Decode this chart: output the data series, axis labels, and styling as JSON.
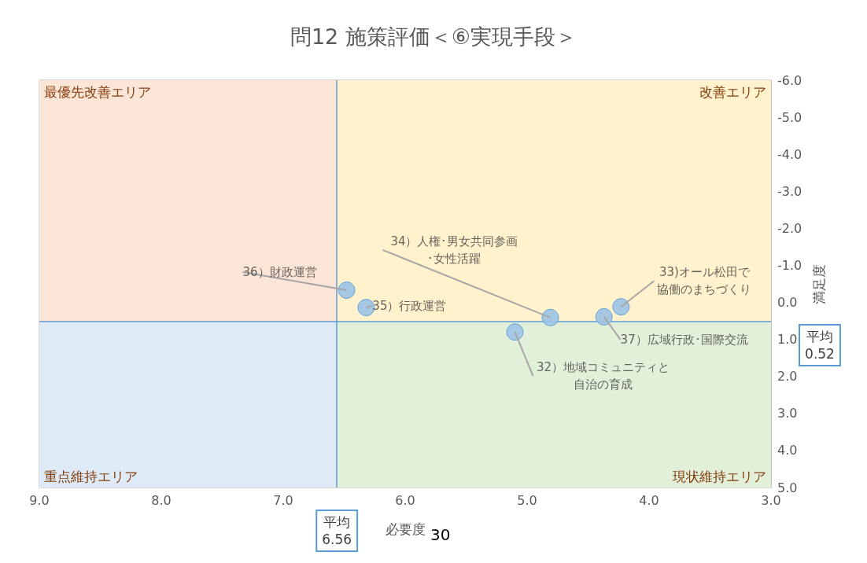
{
  "chart_data": {
    "type": "scatter",
    "title": "問12 施策評価＜⑥実現手段＞",
    "xlabel": "必要度",
    "ylabel": "満足度",
    "x": [
      5.1,
      4.23,
      4.81,
      6.32,
      6.48,
      4.37
    ],
    "series": [
      {
        "color": "#9dc3e6",
        "values": [
          0.8,
          0.12,
          0.41,
          0.14,
          -0.33,
          0.39
        ]
      }
    ],
    "marker": "circle",
    "xlim": [
      9,
      3
    ],
    "xticks": [
      {
        "value": 9,
        "label": "9.0"
      },
      {
        "value": 8,
        "label": "8.0"
      },
      {
        "value": 7,
        "label": "7.0"
      },
      {
        "value": 6,
        "label": "6.0"
      },
      {
        "value": 5,
        "label": "5.0"
      },
      {
        "value": 4,
        "label": "4.0"
      },
      {
        "value": 3,
        "label": "3.0"
      }
    ],
    "ylim": [
      5,
      -6
    ],
    "yticks": [
      {
        "value": -6,
        "label": "-6.0"
      },
      {
        "value": -5,
        "label": "-5.0"
      },
      {
        "value": -4,
        "label": "-4.0"
      },
      {
        "value": -3,
        "label": "-3.0"
      },
      {
        "value": -2,
        "label": "-2.0"
      },
      {
        "value": -1,
        "label": "-1.0"
      },
      {
        "value": 0,
        "label": "0.0"
      },
      {
        "value": 1,
        "label": "1.0"
      },
      {
        "value": 2,
        "label": "2.0"
      },
      {
        "value": 3,
        "label": "3.0"
      },
      {
        "value": 4,
        "label": "4.0"
      },
      {
        "value": 5,
        "label": "5.0"
      }
    ],
    "grid": true,
    "ref_lines": [
      {
        "axis": "x",
        "value": 6.56,
        "label": "平均\n6.56",
        "color": "#5b9bd5"
      },
      {
        "axis": "y",
        "value": 0.52,
        "label": "平均\n0.52",
        "color": "#5b9bd5"
      }
    ],
    "bands": [
      {
        "axis": "x",
        "from": 9,
        "to": 6.56,
        "label": "最優先改善エリア",
        "color": "#fbe5d6"
      },
      {
        "axis": "x",
        "from": 6.56,
        "to": 3,
        "label": "改善エリア",
        "color": "#fff2cc"
      },
      {
        "axis": "x",
        "from": 9,
        "to": 6.56,
        "label": "重点維持エリア",
        "color": "#deebf7"
      },
      {
        "axis": "x",
        "from": 6.56,
        "to": 3,
        "label": "現状維持エリア",
        "color": "#e2f0d9"
      }
    ],
    "annotations": [
      {
        "text": "32）地域コミュニティと自治の育成",
        "x": 5.1,
        "y": 0.8
      },
      {
        "text": "33)オール松田で協働のまちづくり",
        "x": 4.23,
        "y": 0.12
      },
      {
        "text": "34）人権･男女共同参画･女性活躍",
        "x": 4.81,
        "y": 0.41
      },
      {
        "text": "35）行政運営",
        "x": 6.32,
        "y": 0.14
      },
      {
        "text": "36）財政運営",
        "x": 6.48,
        "y": -0.33
      },
      {
        "text": "37）広域行政･国際交流",
        "x": 4.37,
        "y": 0.39
      },
      "30"
    ]
  }
}
